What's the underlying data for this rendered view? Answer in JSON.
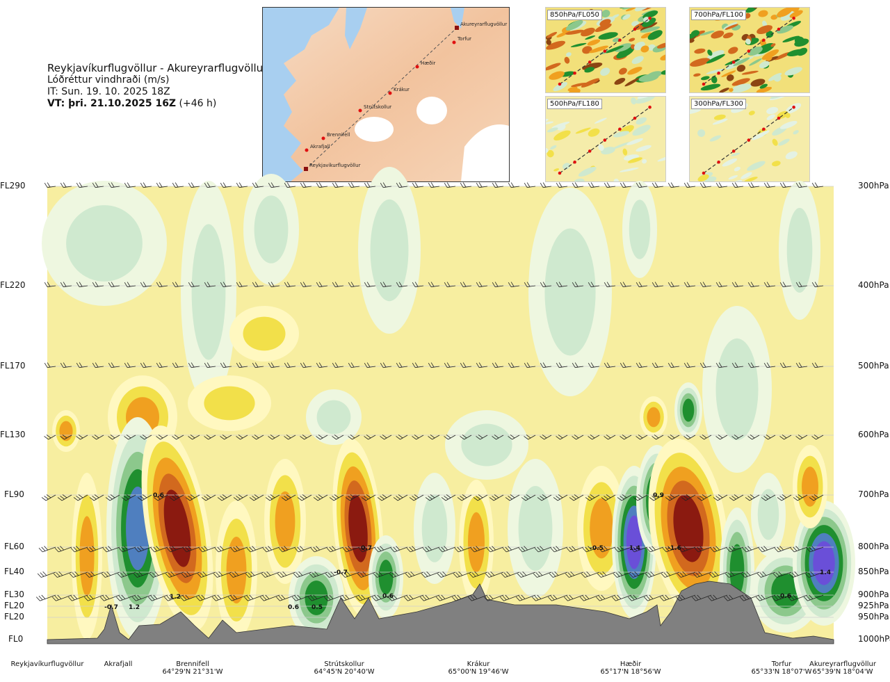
{
  "header": {
    "route_title": "Reykjavíkurflugvöllur - Akureyrarflugvöllur",
    "parameter": "Lóðréttur vindhraði (m/s)",
    "issue_time": "IT: Sun. 19. 10. 2025 18Z",
    "valid_time_bold": "VT: þri. 21.10.2025 16Z",
    "valid_time_offset": "(+46 h)"
  },
  "route_map": {
    "waypoints": [
      "Reykjavíkurflugvöllur",
      "Akrafjall",
      "Brennifell",
      "Strútskollur",
      "Krákur",
      "Hæðir",
      "Torfur",
      "Akureyrarflugvöllur"
    ]
  },
  "level_maps": [
    {
      "label": "850hPa/FL050"
    },
    {
      "label": "700hPa/FL100"
    },
    {
      "label": "500hPa/FL180"
    },
    {
      "label": "300hPa/FL300"
    }
  ],
  "axes": {
    "flight_levels": [
      "FL290",
      "FL220",
      "FL170",
      "FL130",
      "FL90",
      "FL60",
      "FL40",
      "FL30",
      "FL20",
      "FL20",
      "FL0"
    ],
    "pressure_levels": [
      "300hPa",
      "400hPa",
      "500hPa",
      "600hPa",
      "700hPa",
      "800hPa",
      "850hPa",
      "900hPa",
      "925hPa",
      "950hPa",
      "1000hPa"
    ]
  },
  "locations": [
    {
      "name": "Reykjavíkurflugvöllur",
      "coord": ""
    },
    {
      "name": "Akrafjall",
      "coord": ""
    },
    {
      "name": "Brennifell",
      "coord": "64°29'N 21°31'W"
    },
    {
      "name": "Strútskollur",
      "coord": "64°45'N 20°40'W"
    },
    {
      "name": "Krákur",
      "coord": "65°00'N 19°46'W"
    },
    {
      "name": "Hæðir",
      "coord": "65°17'N 18°56'W"
    },
    {
      "name": "Torfur",
      "coord": "65°33'N 18°07'W"
    },
    {
      "name": "Akureyrarflugvöllur",
      "coord": "65°39'N 18°04'W"
    }
  ],
  "chart_data": {
    "type": "heatmap",
    "title": "Lóðréttur vindhraði (m/s)",
    "xlabel": "",
    "ylabel": "",
    "y_pressure_levels_hpa": [
      300,
      400,
      500,
      600,
      700,
      800,
      850,
      900,
      925,
      950,
      1000
    ],
    "x_locations": [
      "Reykjavíkurflugvöllur",
      "Akrafjall",
      "Brennifell",
      "Strútskollur",
      "Krákur",
      "Hæðir",
      "Torfur",
      "Akureyrarflugvöllur"
    ],
    "value_labels": [
      {
        "text": "-0.7",
        "near": "Akrafjall",
        "hpa": 910
      },
      {
        "text": "1.2",
        "near": "Akrafjall",
        "hpa": 910
      },
      {
        "text": "1.2",
        "near": "Brennifell",
        "hpa": 885
      },
      {
        "text": "0.6",
        "near": "Akrafjall",
        "hpa": 700
      },
      {
        "text": "0.6",
        "near": "Strútskollur",
        "hpa": 910
      },
      {
        "text": "0.5",
        "near": "Strútskollur",
        "hpa": 910
      },
      {
        "text": "-0.7",
        "near": "Strútskollur",
        "hpa": 850
      },
      {
        "text": "0.7",
        "near": "Strútskollur",
        "hpa": 800
      },
      {
        "text": "0.6",
        "near": "Strútskollur",
        "hpa": 890
      },
      {
        "text": "-0.5",
        "near": "Hæðir",
        "hpa": 800
      },
      {
        "text": "1.4",
        "near": "Hæðir",
        "hpa": 800
      },
      {
        "text": "-1.6",
        "near": "Hæðir",
        "hpa": 800
      },
      {
        "text": "0.9",
        "near": "Hæðir",
        "hpa": 700
      },
      {
        "text": "0.6",
        "near": "Torfur",
        "hpa": 890
      },
      {
        "text": "1.4",
        "near": "Akureyrarflugvöllur",
        "hpa": 850
      }
    ],
    "color_scale": {
      "strong_down": "#8b1a10",
      "down2": "#d2691e",
      "down1": "#f0a020",
      "weak_down": "#f2e04a",
      "neutral": "#f7eea0",
      "weak_up": "#cfe9cf",
      "up1": "#8cc88c",
      "up2": "#1f8f2f",
      "strong_up": "#4f7fbf",
      "very_strong_up": "#6a4fd8",
      "terrain": "#808080"
    },
    "grid": true,
    "legend": "none"
  }
}
